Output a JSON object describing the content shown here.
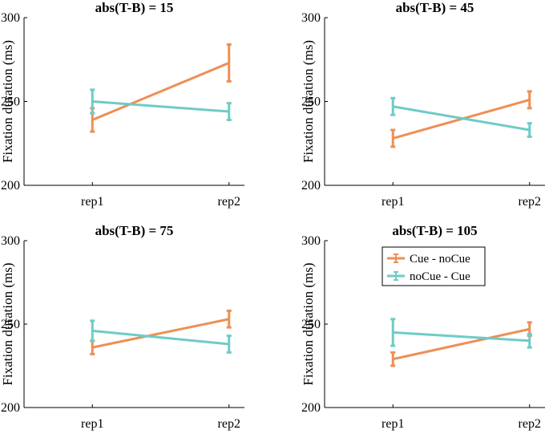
{
  "chart_data": [
    {
      "type": "line",
      "title": "abs(T-B) = 15",
      "ylabel": "Fixation duration (ms)",
      "xlabel": "",
      "categories": [
        "rep1",
        "rep2"
      ],
      "ylim": [
        200,
        300
      ],
      "yticks": [
        "200",
        "250",
        "300"
      ],
      "series": [
        {
          "name": "Cue - noCue",
          "color": "#ee8f55",
          "values": [
            239,
            273
          ],
          "errors": [
            7,
            11
          ]
        },
        {
          "name": "noCue - Cue",
          "color": "#6fcbc6",
          "values": [
            250,
            244
          ],
          "errors": [
            7,
            5
          ]
        }
      ]
    },
    {
      "type": "line",
      "title": "abs(T-B) = 45",
      "ylabel": "Fixation duration (ms)",
      "xlabel": "",
      "categories": [
        "rep1",
        "rep2"
      ],
      "ylim": [
        200,
        300
      ],
      "yticks": [
        "200",
        "250",
        "300"
      ],
      "series": [
        {
          "name": "Cue - noCue",
          "color": "#ee8f55",
          "values": [
            228,
            251
          ],
          "errors": [
            5,
            5
          ]
        },
        {
          "name": "noCue - Cue",
          "color": "#6fcbc6",
          "values": [
            247,
            233
          ],
          "errors": [
            5,
            4
          ]
        }
      ]
    },
    {
      "type": "line",
      "title": "abs(T-B) = 75",
      "ylabel": "Fixation duration (ms)",
      "xlabel": "",
      "categories": [
        "rep1",
        "rep2"
      ],
      "ylim": [
        200,
        300
      ],
      "yticks": [
        "200",
        "250",
        "300"
      ],
      "series": [
        {
          "name": "Cue - noCue",
          "color": "#ee8f55",
          "values": [
            236,
            253
          ],
          "errors": [
            4,
            5
          ]
        },
        {
          "name": "noCue - Cue",
          "color": "#6fcbc6",
          "values": [
            246,
            238
          ],
          "errors": [
            6,
            5
          ]
        }
      ]
    },
    {
      "type": "line",
      "title": "abs(T-B) = 105",
      "ylabel": "Fixation duration (ms)",
      "xlabel": "",
      "categories": [
        "rep1",
        "rep2"
      ],
      "ylim": [
        200,
        300
      ],
      "yticks": [
        "200",
        "250",
        "300"
      ],
      "series": [
        {
          "name": "Cue - noCue",
          "color": "#ee8f55",
          "values": [
            229,
            247
          ],
          "errors": [
            4,
            4
          ]
        },
        {
          "name": "noCue - Cue",
          "color": "#6fcbc6",
          "values": [
            245,
            240
          ],
          "errors": [
            8,
            4
          ]
        }
      ],
      "legend": {
        "placement": "top-right",
        "entries": [
          "Cue - noCue",
          "noCue - Cue"
        ]
      }
    }
  ]
}
